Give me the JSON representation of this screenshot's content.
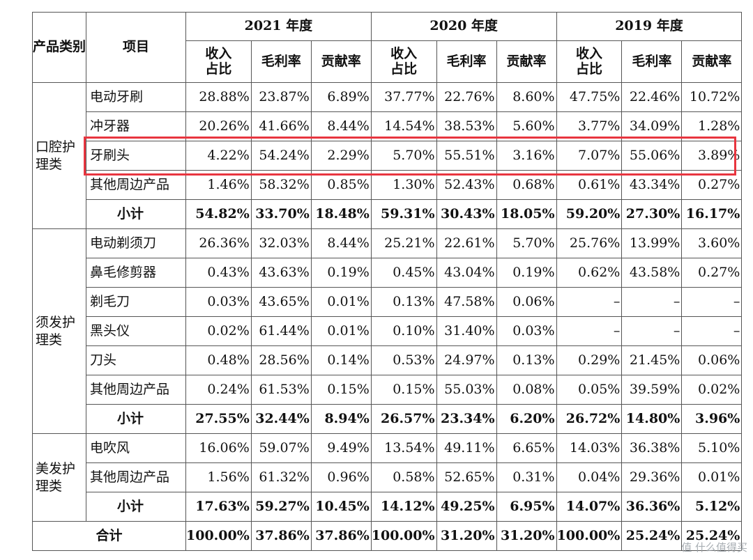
{
  "header": {
    "category": "产品类别",
    "item": "项目",
    "years": [
      "2021 年度",
      "2020 年度",
      "2019 年度"
    ],
    "metrics": [
      "收入占比",
      "毛利率",
      "贡献率"
    ]
  },
  "sections": [
    {
      "category": "口腔护理类",
      "rows": [
        {
          "name": "电动牙刷",
          "values": [
            "28.88%",
            "23.87%",
            "6.89%",
            "37.77%",
            "22.76%",
            "8.60%",
            "47.75%",
            "22.46%",
            "10.72%"
          ]
        },
        {
          "name": "冲牙器",
          "values": [
            "20.26%",
            "41.66%",
            "8.44%",
            "14.54%",
            "38.53%",
            "5.60%",
            "3.77%",
            "34.09%",
            "1.28%"
          ]
        },
        {
          "name": "牙刷头",
          "values": [
            "4.22%",
            "54.24%",
            "2.29%",
            "5.70%",
            "55.51%",
            "3.16%",
            "7.07%",
            "55.06%",
            "3.89%"
          ]
        },
        {
          "name": "其他周边产品",
          "values": [
            "1.46%",
            "58.32%",
            "0.85%",
            "1.30%",
            "52.43%",
            "0.68%",
            "0.61%",
            "43.34%",
            "0.27%"
          ]
        }
      ],
      "subtotal": {
        "label": "小计",
        "values": [
          "54.82%",
          "33.70%",
          "18.48%",
          "59.31%",
          "30.43%",
          "18.05%",
          "59.20%",
          "27.30%",
          "16.17%"
        ]
      }
    },
    {
      "category": "须发护理类",
      "rows": [
        {
          "name": "电动剃须刀",
          "values": [
            "26.36%",
            "32.03%",
            "8.44%",
            "25.21%",
            "22.61%",
            "5.70%",
            "25.76%",
            "13.99%",
            "3.60%"
          ]
        },
        {
          "name": "鼻毛修剪器",
          "values": [
            "0.43%",
            "43.63%",
            "0.19%",
            "0.45%",
            "43.04%",
            "0.19%",
            "0.62%",
            "43.58%",
            "0.27%"
          ]
        },
        {
          "name": "剃毛刀",
          "values": [
            "0.03%",
            "43.65%",
            "0.01%",
            "0.13%",
            "47.58%",
            "0.06%",
            "–",
            "–",
            "–"
          ]
        },
        {
          "name": "黑头仪",
          "values": [
            "0.02%",
            "61.44%",
            "0.01%",
            "0.10%",
            "31.40%",
            "0.03%",
            "–",
            "–",
            "–"
          ]
        },
        {
          "name": "刀头",
          "values": [
            "0.48%",
            "28.56%",
            "0.14%",
            "0.53%",
            "24.97%",
            "0.13%",
            "0.29%",
            "21.45%",
            "0.06%"
          ]
        },
        {
          "name": "其他周边产品",
          "values": [
            "0.24%",
            "61.53%",
            "0.15%",
            "0.15%",
            "55.03%",
            "0.08%",
            "0.05%",
            "39.59%",
            "0.02%"
          ]
        }
      ],
      "subtotal": {
        "label": "小计",
        "values": [
          "27.55%",
          "32.44%",
          "8.94%",
          "26.57%",
          "23.34%",
          "6.20%",
          "26.72%",
          "14.80%",
          "3.96%"
        ]
      }
    },
    {
      "category": "美发护理类",
      "rows": [
        {
          "name": "电吹风",
          "values": [
            "16.06%",
            "59.07%",
            "9.49%",
            "13.54%",
            "49.11%",
            "6.65%",
            "14.03%",
            "36.38%",
            "5.10%"
          ]
        },
        {
          "name": "其他周边产品",
          "values": [
            "1.56%",
            "61.32%",
            "0.96%",
            "0.58%",
            "52.65%",
            "0.31%",
            "0.04%",
            "29.36%",
            "0.01%"
          ]
        }
      ],
      "subtotal": {
        "label": "小计",
        "values": [
          "17.63%",
          "59.27%",
          "10.45%",
          "14.12%",
          "49.25%",
          "6.95%",
          "14.07%",
          "36.36%",
          "5.12%"
        ]
      }
    }
  ],
  "total": {
    "label": "合计",
    "values": [
      "100.00%",
      "37.86%",
      "37.86%",
      "100.00%",
      "31.20%",
      "31.20%",
      "100.00%",
      "25.24%",
      "25.24%"
    ]
  },
  "highlight_color": "#e8353f",
  "watermark": "值 什么值得买"
}
